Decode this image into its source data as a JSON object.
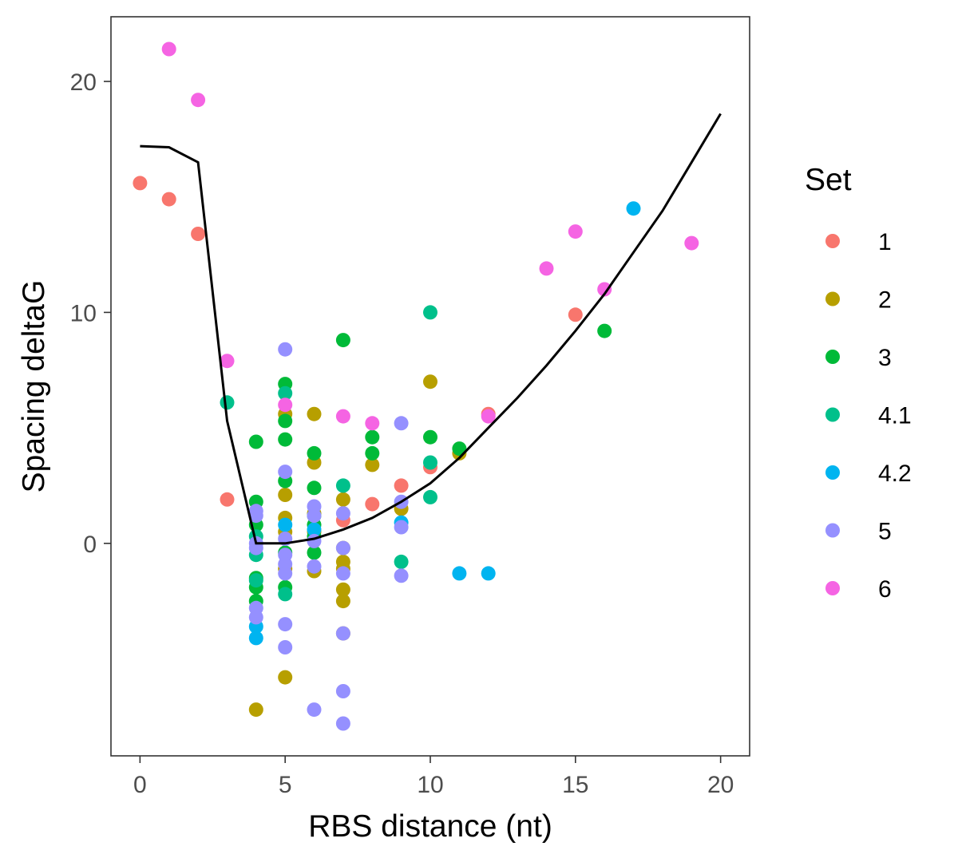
{
  "chart_data": {
    "type": "scatter",
    "title": "",
    "xlabel": "RBS distance (nt)",
    "ylabel": "Spacing deltaG",
    "xlim": [
      -1,
      21
    ],
    "ylim": [
      -9.2,
      22.8
    ],
    "x_ticks": [
      0,
      5,
      10,
      15,
      20
    ],
    "y_ticks": [
      0,
      10,
      20
    ],
    "grid": false,
    "legend": {
      "title": "Set",
      "position": "right"
    },
    "series": [
      {
        "name": "1",
        "color": "#F8766D",
        "points": [
          [
            0,
            15.6
          ],
          [
            1,
            14.9
          ],
          [
            2,
            13.4
          ],
          [
            3,
            1.9
          ],
          [
            7,
            1.0
          ],
          [
            8,
            1.7
          ],
          [
            9,
            2.5
          ],
          [
            10,
            3.3
          ],
          [
            12,
            5.6
          ],
          [
            15,
            9.9
          ]
        ]
      },
      {
        "name": "2",
        "color": "#B79F00",
        "points": [
          [
            4,
            -7.2
          ],
          [
            5,
            5.6
          ],
          [
            5,
            2.1
          ],
          [
            5,
            1.1
          ],
          [
            5,
            0.5
          ],
          [
            5,
            -1.1
          ],
          [
            5,
            -5.8
          ],
          [
            6,
            5.6
          ],
          [
            6,
            3.5
          ],
          [
            6,
            1.3
          ],
          [
            6,
            0.5
          ],
          [
            6,
            -1.2
          ],
          [
            7,
            1.9
          ],
          [
            7,
            -0.2
          ],
          [
            7,
            -0.8
          ],
          [
            7,
            -1.1
          ],
          [
            7,
            -2.0
          ],
          [
            7,
            -2.5
          ],
          [
            7,
            -3.9
          ],
          [
            8,
            3.4
          ],
          [
            9,
            1.5
          ],
          [
            10,
            7.0
          ],
          [
            11,
            3.9
          ]
        ]
      },
      {
        "name": "3",
        "color": "#00BA38",
        "points": [
          [
            4,
            4.4
          ],
          [
            4,
            1.8
          ],
          [
            4,
            0.8
          ],
          [
            4,
            -1.5
          ],
          [
            4,
            -1.9
          ],
          [
            4,
            -2.5
          ],
          [
            5,
            6.9
          ],
          [
            5,
            5.3
          ],
          [
            5,
            4.5
          ],
          [
            5,
            2.7
          ],
          [
            5,
            -0.4
          ],
          [
            5,
            -1.9
          ],
          [
            6,
            3.9
          ],
          [
            6,
            2.4
          ],
          [
            6,
            1.2
          ],
          [
            6,
            0.8
          ],
          [
            6,
            0.3
          ],
          [
            6,
            -0.4
          ],
          [
            7,
            8.8
          ],
          [
            8,
            4.6
          ],
          [
            8,
            3.9
          ],
          [
            10,
            4.6
          ],
          [
            11,
            4.1
          ],
          [
            16,
            9.2
          ]
        ]
      },
      {
        "name": "4.1",
        "color": "#00C08B",
        "points": [
          [
            3,
            6.1
          ],
          [
            4,
            0.3
          ],
          [
            4,
            -0.5
          ],
          [
            4,
            -1.6
          ],
          [
            5,
            6.5
          ],
          [
            5,
            -2.2
          ],
          [
            7,
            2.5
          ],
          [
            9,
            -0.8
          ],
          [
            10,
            10.0
          ],
          [
            10,
            3.5
          ],
          [
            10,
            2.0
          ]
        ]
      },
      {
        "name": "4.2",
        "color": "#00B4F0",
        "points": [
          [
            4,
            -3.6
          ],
          [
            4,
            -4.1
          ],
          [
            5,
            0.8
          ],
          [
            6,
            0.6
          ],
          [
            9,
            0.9
          ],
          [
            11,
            -1.3
          ],
          [
            12,
            -1.3
          ],
          [
            17,
            14.5
          ]
        ]
      },
      {
        "name": "5",
        "color": "#9590FF",
        "points": [
          [
            4,
            1.4
          ],
          [
            4,
            1.2
          ],
          [
            4,
            0.0
          ],
          [
            4,
            -0.2
          ],
          [
            4,
            -2.8
          ],
          [
            4,
            -3.2
          ],
          [
            5,
            8.4
          ],
          [
            5,
            3.1
          ],
          [
            5,
            0.2
          ],
          [
            5,
            -0.5
          ],
          [
            5,
            -0.9
          ],
          [
            5,
            -1.3
          ],
          [
            5,
            -3.5
          ],
          [
            5,
            -4.5
          ],
          [
            6,
            1.6
          ],
          [
            6,
            1.2
          ],
          [
            6,
            0.1
          ],
          [
            6,
            -1.0
          ],
          [
            6,
            -7.2
          ],
          [
            7,
            1.3
          ],
          [
            7,
            -0.2
          ],
          [
            7,
            -1.3
          ],
          [
            7,
            -3.9
          ],
          [
            7,
            -6.4
          ],
          [
            7,
            -7.8
          ],
          [
            9,
            5.2
          ],
          [
            9,
            1.8
          ],
          [
            9,
            0.7
          ],
          [
            9,
            -1.4
          ]
        ]
      },
      {
        "name": "6",
        "color": "#F564E3",
        "points": [
          [
            1,
            21.4
          ],
          [
            2,
            19.2
          ],
          [
            3,
            7.9
          ],
          [
            5,
            6.0
          ],
          [
            7,
            5.5
          ],
          [
            8,
            5.2
          ],
          [
            12,
            5.5
          ],
          [
            14,
            11.9
          ],
          [
            15,
            13.5
          ],
          [
            16,
            11.0
          ],
          [
            19,
            13.0
          ]
        ]
      }
    ],
    "trend_line": {
      "color": "#000000",
      "points": [
        [
          0,
          17.2
        ],
        [
          1,
          17.15
        ],
        [
          2,
          16.5
        ],
        [
          3,
          5.3
        ],
        [
          4,
          0.0
        ],
        [
          5,
          0.0
        ],
        [
          6,
          0.2
        ],
        [
          7,
          0.6
        ],
        [
          8,
          1.1
        ],
        [
          9,
          1.8
        ],
        [
          10,
          2.6
        ],
        [
          11,
          3.7
        ],
        [
          12,
          5.0
        ],
        [
          13,
          6.3
        ],
        [
          14,
          7.7
        ],
        [
          15,
          9.2
        ],
        [
          16,
          10.8
        ],
        [
          17,
          12.6
        ],
        [
          18,
          14.4
        ],
        [
          19,
          16.5
        ],
        [
          20,
          18.6
        ]
      ]
    }
  }
}
